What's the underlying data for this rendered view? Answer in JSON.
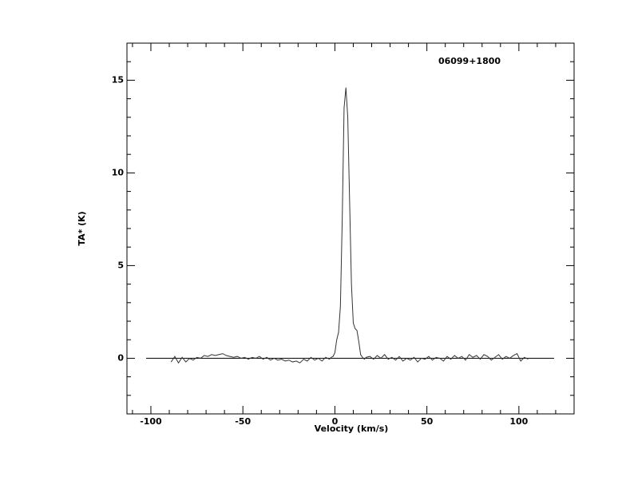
{
  "chart_data": {
    "type": "line",
    "title": "06099+1800",
    "xlabel": "Velocity (km/s)",
    "ylabel": "TA* (K)",
    "x": [
      -89,
      -87,
      -85,
      -83,
      -81,
      -79,
      -77,
      -75,
      -73,
      -71,
      -69,
      -67,
      -65,
      -63,
      -61,
      -59,
      -57,
      -55,
      -53,
      -51,
      -49,
      -47,
      -45,
      -43,
      -41,
      -39,
      -37,
      -35,
      -33,
      -31,
      -29,
      -27,
      -25,
      -23,
      -21,
      -19,
      -17,
      -15,
      -13,
      -11,
      -9,
      -7,
      -5,
      -3,
      -2,
      -1,
      0,
      1,
      2,
      3,
      4,
      5,
      6,
      7,
      8,
      9,
      10,
      11,
      12,
      13,
      14,
      15,
      16,
      17,
      19,
      21,
      23,
      25,
      27,
      29,
      31,
      33,
      35,
      37,
      39,
      41,
      43,
      45,
      47,
      49,
      51,
      53,
      55,
      57,
      59,
      61,
      63,
      65,
      67,
      69,
      71,
      73,
      75,
      77,
      79,
      81,
      83,
      85,
      87,
      89,
      91,
      93,
      95,
      97,
      99,
      101,
      103,
      105
    ],
    "values": [
      -0.2,
      0.1,
      -0.25,
      0.05,
      -0.2,
      0.0,
      -0.1,
      0.05,
      0.0,
      0.15,
      0.1,
      0.2,
      0.15,
      0.2,
      0.25,
      0.15,
      0.1,
      0.05,
      0.1,
      0.0,
      0.05,
      -0.05,
      0.05,
      0.0,
      0.1,
      -0.05,
      0.05,
      -0.1,
      0.0,
      -0.1,
      -0.05,
      -0.15,
      -0.1,
      -0.2,
      -0.15,
      -0.25,
      -0.05,
      -0.15,
      0.05,
      -0.1,
      0.0,
      -0.15,
      0.05,
      -0.05,
      0.05,
      0.1,
      0.3,
      1.0,
      1.4,
      2.8,
      7.5,
      13.5,
      14.6,
      13.0,
      8.5,
      4.0,
      1.9,
      1.6,
      1.5,
      0.9,
      0.2,
      0.05,
      -0.05,
      0.05,
      0.1,
      -0.05,
      0.15,
      0.0,
      0.2,
      -0.05,
      0.05,
      -0.1,
      0.1,
      -0.15,
      0.0,
      -0.1,
      0.05,
      -0.2,
      0.0,
      -0.05,
      0.1,
      -0.1,
      0.05,
      0.0,
      -0.15,
      0.1,
      -0.05,
      0.15,
      0.0,
      0.1,
      -0.1,
      0.2,
      0.05,
      0.15,
      -0.05,
      0.2,
      0.1,
      -0.1,
      0.05,
      0.2,
      -0.05,
      0.1,
      0.0,
      0.15,
      0.25,
      -0.15,
      0.05,
      -0.05
    ],
    "color": "#333333",
    "xlim": [
      -113,
      130
    ],
    "ylim": [
      -3,
      17
    ],
    "xticks": [
      -100,
      -50,
      0,
      50,
      100
    ],
    "yticks": [
      0,
      5,
      10,
      15
    ],
    "xminorticks": [
      -110,
      -90,
      -80,
      -70,
      -60,
      -40,
      -30,
      -20,
      -10,
      10,
      20,
      30,
      40,
      60,
      70,
      80,
      90,
      110,
      120
    ],
    "yminorticks": [
      -2,
      -1,
      1,
      2,
      3,
      4,
      6,
      7,
      8,
      9,
      11,
      12,
      13,
      14,
      16
    ]
  }
}
